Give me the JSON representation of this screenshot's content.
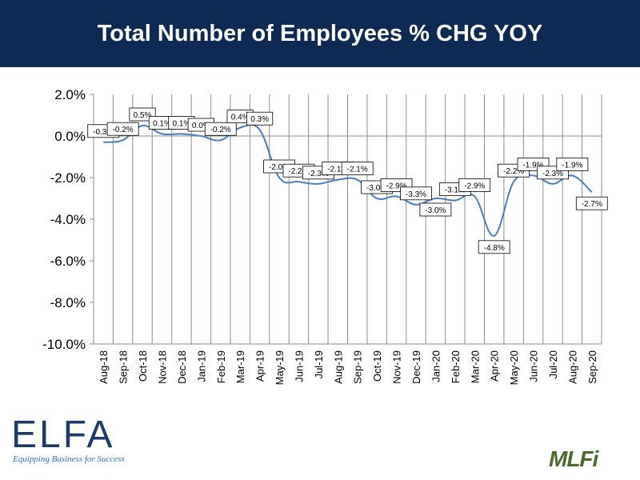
{
  "header": {
    "title": "Total Number of Employees % CHG YOY"
  },
  "chart_data": {
    "type": "line",
    "title": "Total Number of Employees % CHG YOY",
    "categories": [
      "Aug-18",
      "Sep-18",
      "Oct-18",
      "Nov-18",
      "Dec-18",
      "Jan-19",
      "Feb-19",
      "Mar-19",
      "Apr-19",
      "May-19",
      "Jun-19",
      "Jul-19",
      "Aug-19",
      "Sep-19",
      "Oct-19",
      "Nov-19",
      "Dec-19",
      "Jan-20",
      "Feb-20",
      "Mar-20",
      "Apr-20",
      "May-20",
      "Jun-20",
      "Jul-20",
      "Aug-20",
      "Sep-20"
    ],
    "values": [
      -0.3,
      -0.2,
      0.5,
      0.1,
      0.1,
      0.0,
      -0.2,
      0.4,
      0.3,
      -2.0,
      -2.2,
      -2.3,
      -2.1,
      -2.1,
      -3.0,
      -2.9,
      -3.3,
      -3.0,
      -3.1,
      -2.9,
      -4.8,
      -2.2,
      -1.9,
      -2.3,
      -1.9,
      -2.7
    ],
    "data_labels": [
      "-0.3%",
      "-0.2%",
      "0.5%",
      "0.1%",
      "0.1%",
      "0.0%",
      "-0.2%",
      "0.4%",
      "0.3%",
      "-2.0%",
      "-2.2%",
      "-2.3%",
      "-2.1%",
      "-2.1%",
      "-3.0%",
      "-2.9%",
      "-3.3%",
      "-3.0%",
      "-3.1%",
      "-2.9%",
      "-4.8%",
      "-2.2%",
      "-1.9%",
      "-2.3%",
      "-1.9%",
      "-2.7%"
    ],
    "ylim": [
      -10,
      2
    ],
    "yticks": [
      2,
      0,
      -2,
      -4,
      -6,
      -8,
      -10
    ],
    "ytick_labels": [
      "2.0%",
      "0.0%",
      "-2.0%",
      "-4.0%",
      "-6.0%",
      "-8.0%",
      "-10.0%"
    ],
    "grid": "vertical",
    "line_color": "#4a7ebb"
  },
  "logos": {
    "elfa": {
      "letters": "ELFA",
      "tagline": "Equipping Business for Success"
    },
    "mlfi": {
      "letters": "MLFi"
    }
  },
  "colors": {
    "header_bg": "#0e2a52",
    "accent": "#4a7ebb"
  }
}
